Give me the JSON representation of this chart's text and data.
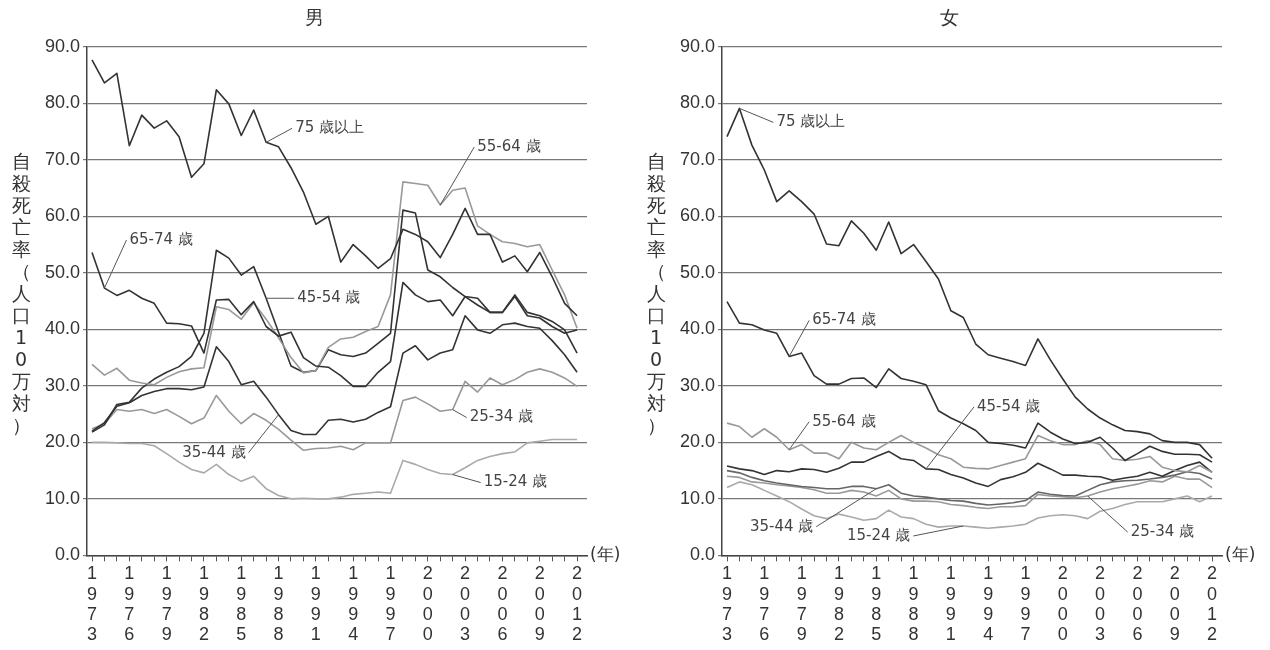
{
  "chart_data": [
    {
      "type": "line",
      "title": "男",
      "ylabel": "自殺死亡率（人口10万対）",
      "xlabel": "(年)",
      "x": [
        1973,
        1974,
        1975,
        1976,
        1977,
        1978,
        1979,
        1980,
        1981,
        1982,
        1983,
        1984,
        1985,
        1986,
        1987,
        1988,
        1989,
        1990,
        1991,
        1992,
        1993,
        1994,
        1995,
        1996,
        1997,
        1998,
        1999,
        2000,
        2001,
        2002,
        2003,
        2004,
        2005,
        2006,
        2007,
        2008,
        2009,
        2010,
        2011,
        2012
      ],
      "xlim": [
        1972.6,
        2012.8
      ],
      "xticks": [
        1973,
        {
          "value": 1974,
          "label": null
        },
        {
          "value": 1975,
          "label": null
        },
        1976,
        {
          "value": 1977,
          "label": null
        },
        {
          "value": 1978,
          "label": null
        },
        1979,
        {
          "value": 1980,
          "label": null
        },
        {
          "value": 1981,
          "label": null
        },
        1982,
        {
          "value": 1983,
          "label": null
        },
        {
          "value": 1984,
          "label": null
        },
        1985,
        {
          "value": 1986,
          "label": null
        },
        {
          "value": 1987,
          "label": null
        },
        1988,
        {
          "value": 1989,
          "label": null
        },
        {
          "value": 1990,
          "label": null
        },
        1991,
        {
          "value": 1992,
          "label": null
        },
        {
          "value": 1993,
          "label": null
        },
        1994,
        {
          "value": 1995,
          "label": null
        },
        {
          "value": 1996,
          "label": null
        },
        1997,
        {
          "value": 1998,
          "label": null
        },
        {
          "value": 1999,
          "label": null
        },
        2000,
        {
          "value": 2001,
          "label": null
        },
        {
          "value": 2002,
          "label": null
        },
        2003,
        {
          "value": 2004,
          "label": null
        },
        {
          "value": 2005,
          "label": null
        },
        2006,
        {
          "value": 2007,
          "label": null
        },
        {
          "value": 2008,
          "label": null
        },
        2009,
        {
          "value": 2010,
          "label": null
        },
        {
          "value": 2011,
          "label": null
        },
        2012
      ],
      "ylim": [
        0,
        90
      ],
      "yticks": [
        {
          "value": 0,
          "label": "0.0"
        },
        {
          "value": 10,
          "label": "10.0"
        },
        {
          "value": 20,
          "label": "20.0"
        },
        {
          "value": 30,
          "label": "30.0"
        },
        {
          "value": 40,
          "label": "40.0"
        },
        {
          "value": 50,
          "label": "50.0"
        },
        {
          "value": 60,
          "label": "60.0"
        },
        {
          "value": 70,
          "label": "70.0"
        },
        {
          "value": 80,
          "label": "80.0"
        },
        {
          "value": 90,
          "label": "90.0"
        }
      ],
      "grid": "y",
      "marker": "none",
      "line_style": "solid",
      "series": [
        {
          "name": "75 歳以上",
          "color": "#333333",
          "values": [
            87.7,
            83.6,
            85.3,
            72.5,
            77.9,
            75.6,
            76.9,
            74.1,
            66.9,
            69.3,
            82.4,
            79.9,
            74.3,
            78.8,
            73.1,
            72.3,
            68.6,
            64.3,
            58.6,
            60.0,
            51.9,
            55.0,
            53.0,
            50.8,
            52.5,
            57.7,
            56.8,
            55.5,
            52.7,
            56.8,
            61.4,
            56.8,
            56.8,
            51.9,
            53.0,
            50.2,
            53.6,
            49.3,
            44.6,
            42.4
          ]
        },
        {
          "name": "65-74 歳",
          "color": "#333333",
          "values": [
            53.6,
            47.3,
            46.0,
            46.9,
            45.5,
            44.6,
            41.1,
            41.0,
            40.6,
            35.8,
            45.2,
            45.3,
            42.6,
            44.9,
            40.5,
            38.8,
            39.5,
            35.0,
            33.5,
            33.3,
            31.8,
            29.9,
            29.9,
            32.4,
            34.3,
            48.3,
            46.1,
            44.9,
            45.2,
            42.4,
            45.8,
            44.3,
            43.0,
            43.0,
            46.1,
            43.0,
            42.4,
            41.4,
            39.9,
            35.8
          ]
        },
        {
          "name": "55-64 歳",
          "color": "#999999",
          "values": [
            33.8,
            31.9,
            33.1,
            31.0,
            30.5,
            30.2,
            31.5,
            32.5,
            33.0,
            33.2,
            44.0,
            43.5,
            41.8,
            44.7,
            41.8,
            38.5,
            35.0,
            32.3,
            32.7,
            36.8,
            38.3,
            38.6,
            39.6,
            40.5,
            46.1,
            66.1,
            65.8,
            65.5,
            62.0,
            64.6,
            65.0,
            58.3,
            56.8,
            55.5,
            55.2,
            54.6,
            55.0,
            50.5,
            46.1,
            40.2
          ]
        },
        {
          "name": "45-54 歳",
          "color": "#333333",
          "values": [
            21.8,
            23.1,
            26.7,
            27.1,
            29.6,
            31.2,
            32.4,
            33.4,
            35.2,
            39.3,
            54.0,
            52.6,
            49.6,
            51.1,
            45.5,
            39.5,
            33.5,
            32.4,
            32.7,
            36.4,
            35.5,
            35.2,
            35.8,
            37.5,
            39.3,
            61.1,
            60.6,
            50.5,
            49.3,
            47.4,
            45.8,
            45.5,
            43.0,
            43.0,
            45.8,
            42.4,
            42.0,
            40.5,
            39.3,
            39.9
          ]
        },
        {
          "name": "35-44 歳",
          "color": "#333333",
          "values": [
            22.0,
            23.5,
            26.4,
            27.0,
            28.3,
            29.0,
            29.5,
            29.5,
            29.3,
            29.8,
            36.9,
            34.3,
            30.2,
            30.8,
            28.0,
            24.9,
            22.1,
            21.4,
            21.4,
            23.9,
            24.1,
            23.6,
            24.1,
            25.3,
            26.3,
            35.8,
            37.1,
            34.6,
            35.8,
            36.4,
            42.4,
            39.9,
            39.3,
            40.8,
            41.1,
            40.5,
            40.2,
            38.0,
            35.5,
            32.4
          ]
        },
        {
          "name": "25-34 歳",
          "color": "#999999",
          "values": [
            22.4,
            23.3,
            25.8,
            25.5,
            25.8,
            25.1,
            25.8,
            24.6,
            23.3,
            24.3,
            28.3,
            25.5,
            23.3,
            25.1,
            23.9,
            22.3,
            20.4,
            18.6,
            18.9,
            19.0,
            19.3,
            18.7,
            19.9,
            19.9,
            19.9,
            27.4,
            28.0,
            26.8,
            25.5,
            25.8,
            30.8,
            28.9,
            31.4,
            30.2,
            31.1,
            32.4,
            33.0,
            32.4,
            31.4,
            29.9
          ]
        },
        {
          "name": "15-24 歳",
          "color": "#aaaaaa",
          "values": [
            20.0,
            20.0,
            19.9,
            19.8,
            19.8,
            19.4,
            18.0,
            16.5,
            15.2,
            14.6,
            16.1,
            14.3,
            13.1,
            14.0,
            11.8,
            10.6,
            10.0,
            10.1,
            10.0,
            10.0,
            10.3,
            10.8,
            11.0,
            11.2,
            11.0,
            16.8,
            16.1,
            15.2,
            14.5,
            14.3,
            15.5,
            16.8,
            17.5,
            18.0,
            18.3,
            19.9,
            20.2,
            20.5,
            20.5,
            20.5
          ]
        }
      ]
    },
    {
      "type": "line",
      "title": "女",
      "ylabel": "自殺死亡率（人口10万対）",
      "xlabel": "(年)",
      "x": [
        1973,
        1974,
        1975,
        1976,
        1977,
        1978,
        1979,
        1980,
        1981,
        1982,
        1983,
        1984,
        1985,
        1986,
        1987,
        1988,
        1989,
        1990,
        1991,
        1992,
        1993,
        1994,
        1995,
        1996,
        1997,
        1998,
        1999,
        2000,
        2001,
        2002,
        2003,
        2004,
        2005,
        2006,
        2007,
        2008,
        2009,
        2010,
        2011,
        2012
      ],
      "xlim": [
        1972.6,
        2012.8
      ],
      "xticks": [
        1973,
        {
          "value": 1974,
          "label": null
        },
        {
          "value": 1975,
          "label": null
        },
        1976,
        {
          "value": 1977,
          "label": null
        },
        {
          "value": 1978,
          "label": null
        },
        1979,
        {
          "value": 1980,
          "label": null
        },
        {
          "value": 1981,
          "label": null
        },
        1982,
        {
          "value": 1983,
          "label": null
        },
        {
          "value": 1984,
          "label": null
        },
        1985,
        {
          "value": 1986,
          "label": null
        },
        {
          "value": 1987,
          "label": null
        },
        1988,
        {
          "value": 1989,
          "label": null
        },
        {
          "value": 1990,
          "label": null
        },
        1991,
        {
          "value": 1992,
          "label": null
        },
        {
          "value": 1993,
          "label": null
        },
        1994,
        {
          "value": 1995,
          "label": null
        },
        {
          "value": 1996,
          "label": null
        },
        1997,
        {
          "value": 1998,
          "label": null
        },
        {
          "value": 1999,
          "label": null
        },
        2000,
        {
          "value": 2001,
          "label": null
        },
        {
          "value": 2002,
          "label": null
        },
        2003,
        {
          "value": 2004,
          "label": null
        },
        {
          "value": 2005,
          "label": null
        },
        2006,
        {
          "value": 2007,
          "label": null
        },
        {
          "value": 2008,
          "label": null
        },
        2009,
        {
          "value": 2010,
          "label": null
        },
        {
          "value": 2011,
          "label": null
        },
        2012
      ],
      "ylim": [
        0,
        90
      ],
      "yticks": [
        {
          "value": 0,
          "label": "0.0"
        },
        {
          "value": 10,
          "label": "10.0"
        },
        {
          "value": 20,
          "label": "20.0"
        },
        {
          "value": 30,
          "label": "30.0"
        },
        {
          "value": 40,
          "label": "40.0"
        },
        {
          "value": 50,
          "label": "50.0"
        },
        {
          "value": 60,
          "label": "60.0"
        },
        {
          "value": 70,
          "label": "70.0"
        },
        {
          "value": 80,
          "label": "80.0"
        },
        {
          "value": 90,
          "label": "90.0"
        }
      ],
      "grid": "y",
      "marker": "none",
      "line_style": "solid",
      "series": [
        {
          "name": "75 歳以上",
          "color": "#333333",
          "values": [
            74.1,
            79.1,
            72.6,
            68.2,
            62.6,
            64.5,
            62.6,
            60.4,
            55.1,
            54.8,
            59.2,
            57.0,
            54.0,
            59.0,
            53.4,
            55.0,
            52.0,
            48.9,
            43.3,
            42.1,
            37.4,
            35.5,
            34.9,
            34.3,
            33.6,
            38.3,
            34.6,
            31.2,
            28.0,
            25.9,
            24.3,
            23.1,
            22.1,
            21.9,
            21.5,
            20.3,
            20.0,
            20.0,
            19.6,
            17.2
          ]
        },
        {
          "name": "65-74 歳",
          "color": "#333333",
          "values": [
            44.9,
            41.1,
            40.8,
            39.9,
            39.3,
            35.2,
            35.8,
            31.8,
            30.3,
            30.3,
            31.3,
            31.4,
            29.7,
            33.0,
            31.3,
            30.8,
            30.2,
            25.6,
            24.3,
            23.3,
            22.1,
            20.0,
            19.8,
            19.5,
            19.0,
            23.4,
            21.8,
            20.6,
            19.8,
            20.0,
            20.9,
            19.0,
            16.8,
            18.0,
            19.3,
            18.4,
            17.9,
            17.9,
            17.8,
            16.5
          ]
        },
        {
          "name": "55-64 歳",
          "color": "#999999",
          "values": [
            23.4,
            22.8,
            20.9,
            22.4,
            20.9,
            18.7,
            19.6,
            18.1,
            18.1,
            17.1,
            20.0,
            19.0,
            18.7,
            20.0,
            21.2,
            20.0,
            19.0,
            17.8,
            17.1,
            15.6,
            15.4,
            15.3,
            15.9,
            16.5,
            17.1,
            21.2,
            20.3,
            19.6,
            19.6,
            20.3,
            19.6,
            17.1,
            16.8,
            17.0,
            17.5,
            15.6,
            15.0,
            14.8,
            15.9,
            14.7
          ]
        },
        {
          "name": "45-54 歳",
          "color": "#333333",
          "values": [
            15.8,
            15.3,
            15.0,
            14.3,
            15.0,
            14.8,
            15.3,
            15.2,
            14.7,
            15.4,
            16.5,
            16.5,
            17.5,
            18.4,
            17.1,
            16.8,
            15.3,
            15.2,
            14.3,
            13.7,
            12.8,
            12.2,
            13.4,
            13.9,
            14.7,
            16.3,
            15.3,
            14.2,
            14.2,
            14.0,
            13.9,
            13.3,
            13.7,
            14.0,
            14.7,
            14.0,
            15.0,
            15.9,
            16.5,
            14.7
          ]
        },
        {
          "name": "35-44 歳",
          "color": "#666666",
          "values": [
            15.0,
            14.6,
            13.8,
            13.2,
            12.8,
            12.5,
            12.2,
            12.0,
            11.8,
            11.8,
            12.2,
            12.2,
            11.8,
            12.5,
            11.0,
            10.5,
            10.3,
            10.0,
            9.7,
            9.6,
            9.2,
            8.9,
            9.1,
            9.3,
            9.7,
            11.2,
            10.8,
            10.6,
            10.5,
            11.5,
            12.5,
            13.0,
            13.2,
            13.3,
            13.5,
            13.8,
            14.2,
            14.8,
            14.5,
            13.5
          ]
        },
        {
          "name": "25-34 歳",
          "color": "#999999",
          "values": [
            14.0,
            13.8,
            13.0,
            12.8,
            12.5,
            12.3,
            12.0,
            11.6,
            11.0,
            11.0,
            11.5,
            11.2,
            10.5,
            11.5,
            10.0,
            9.6,
            9.6,
            9.5,
            9.0,
            8.8,
            8.5,
            8.3,
            8.6,
            8.6,
            8.8,
            10.8,
            10.5,
            10.4,
            10.2,
            10.5,
            11.2,
            11.8,
            12.2,
            12.6,
            13.2,
            13.0,
            14.0,
            13.5,
            13.5,
            12.0
          ]
        },
        {
          "name": "15-24 歳",
          "color": "#aaaaaa",
          "values": [
            12.0,
            13.0,
            12.5,
            11.5,
            10.5,
            9.5,
            8.2,
            7.0,
            6.5,
            7.3,
            6.8,
            6.2,
            6.5,
            8.0,
            6.8,
            6.5,
            5.5,
            5.0,
            5.2,
            5.2,
            5.0,
            4.8,
            5.0,
            5.2,
            5.5,
            6.6,
            7.0,
            7.2,
            7.0,
            6.5,
            7.8,
            8.3,
            9.0,
            9.5,
            9.5,
            9.5,
            10.0,
            10.5,
            9.5,
            10.5
          ]
        }
      ]
    }
  ]
}
